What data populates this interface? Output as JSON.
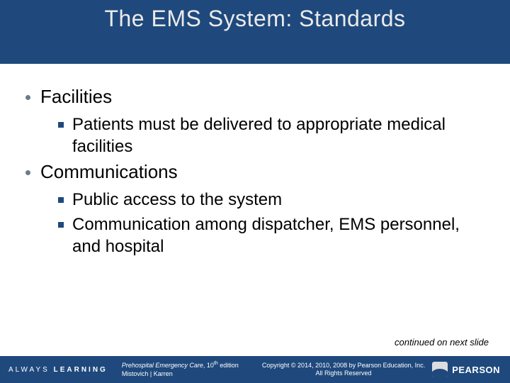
{
  "colors": {
    "band": "#1f497d",
    "title_text": "#eaeaea",
    "body_text": "#000000",
    "l1_bullet": "#6b7a8f",
    "l2_bullet": "#1f497d",
    "footer_bg": "#1f497d",
    "footer_text": "#ffffff"
  },
  "typography": {
    "title_fontsize": 32,
    "l1_fontsize": 26,
    "l2_fontsize": 24,
    "continued_fontsize": 13,
    "footer_fontsize": 9
  },
  "title": "The EMS System: Standards",
  "bullets": [
    {
      "text": "Facilities",
      "children": [
        "Patients must be delivered to appropriate medical facilities"
      ]
    },
    {
      "text": "Communications",
      "children": [
        "Public access to the system",
        "Communication among dispatcher, EMS personnel, and hospital"
      ]
    }
  ],
  "continued": "continued on next slide",
  "footer": {
    "always": "ALWAYS",
    "learning": "LEARNING",
    "book_title": "Prehospital Emergency Care",
    "edition": ", 10",
    "edition_sup": "th",
    "edition_tail": " edition",
    "authors": "Mistovich | Karren",
    "copyright_line1": "Copyright © 2014, 2010, 2008 by Pearson Education, Inc.",
    "copyright_line2": "All Rights Reserved",
    "brand": "PEARSON"
  }
}
